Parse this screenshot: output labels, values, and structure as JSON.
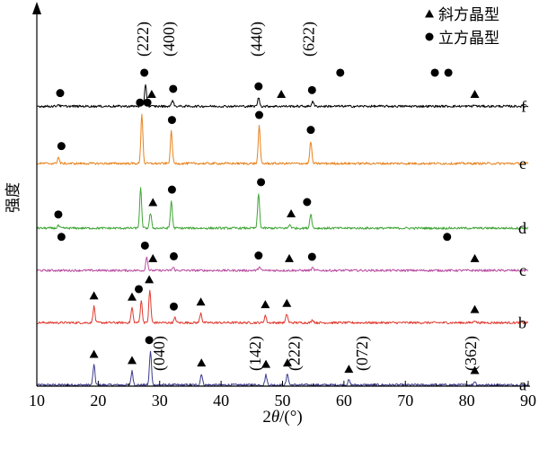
{
  "chart_data": {
    "type": "line",
    "title": "",
    "xlabel": "2θ/(°)",
    "xlabel_parts": [
      "2",
      "θ",
      "/(°)"
    ],
    "ylabel": "强度",
    "xlim": [
      10,
      90
    ],
    "x_ticks": [
      10,
      20,
      30,
      40,
      50,
      60,
      70,
      80,
      90
    ],
    "legend": {
      "placement": "top-right",
      "entries": [
        {
          "marker": "triangle",
          "label": "斜方晶型"
        },
        {
          "marker": "circle",
          "label": "立方晶型"
        }
      ]
    },
    "series": [
      {
        "name": "a",
        "color": "#3b3b8f",
        "offset": 0.0,
        "peaks": [
          [
            19.3,
            0.8
          ],
          [
            25.5,
            0.55
          ],
          [
            28.5,
            1.35
          ],
          [
            36.8,
            0.45
          ],
          [
            47.3,
            0.4
          ],
          [
            50.8,
            0.45
          ],
          [
            60.8,
            0.2
          ],
          [
            81.3,
            0.15
          ]
        ]
      },
      {
        "name": "b",
        "color": "#e03a2f",
        "offset": 2.5,
        "peaks": [
          [
            19.3,
            0.65
          ],
          [
            25.5,
            0.6
          ],
          [
            27.0,
            0.9
          ],
          [
            28.4,
            1.3
          ],
          [
            32.5,
            0.2
          ],
          [
            36.7,
            0.4
          ],
          [
            47.2,
            0.3
          ],
          [
            50.7,
            0.35
          ],
          [
            54.9,
            0.12
          ],
          [
            81.3,
            0.1
          ]
        ]
      },
      {
        "name": "c",
        "color": "#b94ca0",
        "offset": 4.6,
        "peaks": [
          [
            27.9,
            0.55
          ],
          [
            32.2,
            0.12
          ],
          [
            46.2,
            0.15
          ],
          [
            54.9,
            0.1
          ]
        ]
      },
      {
        "name": "d",
        "color": "#3fa535",
        "offset": 6.3,
        "peaks": [
          [
            13.5,
            0.1
          ],
          [
            26.9,
            1.6
          ],
          [
            28.5,
            0.6
          ],
          [
            31.9,
            1.1
          ],
          [
            46.1,
            1.4
          ],
          [
            51.2,
            0.15
          ],
          [
            54.6,
            0.6
          ]
        ]
      },
      {
        "name": "e",
        "color": "#e8821c",
        "offset": 8.9,
        "peaks": [
          [
            13.5,
            0.25
          ],
          [
            27.1,
            2.0
          ],
          [
            31.9,
            1.3
          ],
          [
            46.2,
            1.5
          ],
          [
            54.6,
            0.9
          ]
        ]
      },
      {
        "name": "f",
        "color": "#000000",
        "offset": 11.2,
        "peaks": [
          [
            13.5,
            0.08
          ],
          [
            27.7,
            0.9
          ],
          [
            32.1,
            0.25
          ],
          [
            46.1,
            0.35
          ],
          [
            54.9,
            0.2
          ],
          [
            81.3,
            0.05
          ]
        ]
      }
    ],
    "phase_markers": [
      {
        "curve": "a",
        "kind": "triangle",
        "x": [
          19.3,
          25.5,
          36.8,
          47.3,
          50.8,
          60.8,
          81.3
        ]
      },
      {
        "curve": "a",
        "kind": "circle",
        "x": [
          28.3
        ]
      },
      {
        "curve": "b",
        "kind": "triangle",
        "x": [
          19.3,
          25.5,
          28.3,
          36.7,
          47.2,
          50.7,
          81.3
        ]
      },
      {
        "curve": "b",
        "kind": "circle",
        "x": [
          26.6,
          32.3
        ]
      },
      {
        "curve": "c",
        "kind": "circle",
        "x": [
          14.0,
          27.6,
          32.3,
          46.1,
          54.8,
          76.8
        ]
      },
      {
        "curve": "c",
        "kind": "triangle",
        "x": [
          28.9,
          51.1,
          81.3
        ]
      },
      {
        "curve": "d",
        "kind": "circle",
        "x": [
          13.5,
          32.0,
          46.5,
          54.0
        ]
      },
      {
        "curve": "d",
        "kind": "triangle",
        "x": [
          28.9,
          51.4
        ]
      },
      {
        "curve": "e",
        "kind": "circle",
        "x": [
          14.0,
          26.8,
          28.0,
          32.0,
          46.2,
          54.6
        ]
      },
      {
        "curve": "f",
        "kind": "circle",
        "x": [
          13.8,
          27.5,
          32.2,
          46.1,
          54.8,
          59.4,
          74.8,
          77.0
        ]
      },
      {
        "curve": "f",
        "kind": "triangle",
        "x": [
          28.7,
          49.8,
          81.3
        ]
      }
    ],
    "miller_indices": {
      "cubic_top": [
        {
          "text": "(222)",
          "x": 27.5
        },
        {
          "text": "(400)",
          "x": 31.8
        },
        {
          "text": "(440)",
          "x": 46.0
        },
        {
          "text": "(622)",
          "x": 54.5
        }
      ],
      "orthorhombic_bottom": [
        {
          "text": "(040)",
          "x": 30.2
        },
        {
          "text": "(142)",
          "x": 45.8
        },
        {
          "text": "(222)",
          "x": 52.2
        },
        {
          "text": "(072)",
          "x": 63.2
        },
        {
          "text": "(362)",
          "x": 80.9
        }
      ]
    }
  }
}
